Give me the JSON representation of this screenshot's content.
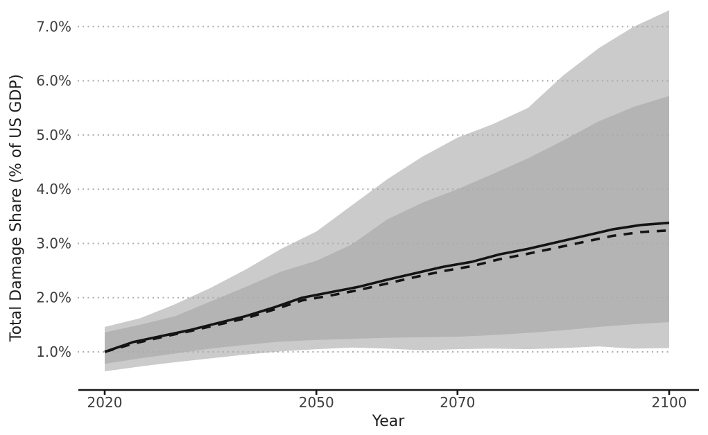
{
  "chart_data": {
    "type": "area",
    "title": "",
    "xlabel": "Year",
    "ylabel": "Total Damage Share (% of US GDP)",
    "xlim": [
      2016.3,
      2104.2
    ],
    "ylim": [
      0.55,
      7.39
    ],
    "grid": "horizontal-dotted",
    "legend_position": "none",
    "x_ticks": [
      {
        "value": 2020,
        "label": "2020"
      },
      {
        "value": 2050,
        "label": "2050"
      },
      {
        "value": 2070,
        "label": "2070"
      },
      {
        "value": 2100,
        "label": "2100"
      }
    ],
    "y_ticks": [
      {
        "value": 1.0,
        "label": "1.0%"
      },
      {
        "value": 2.0,
        "label": "2.0%"
      },
      {
        "value": 3.0,
        "label": "3.0%"
      },
      {
        "value": 4.0,
        "label": "4.0%"
      },
      {
        "value": 5.0,
        "label": "5.0%"
      },
      {
        "value": 6.0,
        "label": "6.0%"
      },
      {
        "value": 7.0,
        "label": "7.0%"
      }
    ],
    "band_x": [
      2020,
      2025,
      2030,
      2035,
      2040,
      2045,
      2050,
      2055,
      2060,
      2065,
      2070,
      2075,
      2080,
      2085,
      2090,
      2095,
      2100
    ],
    "bands": [
      {
        "name": "outer-uncertainty-band",
        "color": "#cbcbcb",
        "hi": [
          1.46,
          1.62,
          1.88,
          2.18,
          2.52,
          2.9,
          3.22,
          3.7,
          4.18,
          4.6,
          4.95,
          5.2,
          5.5,
          6.1,
          6.6,
          7.0,
          7.3
        ],
        "lo": [
          0.64,
          0.73,
          0.81,
          0.88,
          0.95,
          1.01,
          1.05,
          1.08,
          1.06,
          1.03,
          1.05,
          1.06,
          1.05,
          1.07,
          1.1,
          1.06,
          1.07
        ]
      },
      {
        "name": "inner-uncertainty-band",
        "color": "#b4b4b4",
        "hi": [
          1.36,
          1.5,
          1.66,
          1.93,
          2.2,
          2.48,
          2.68,
          2.98,
          3.44,
          3.75,
          4.0,
          4.28,
          4.57,
          4.9,
          5.25,
          5.52,
          5.72
        ],
        "lo": [
          0.78,
          0.88,
          0.97,
          1.06,
          1.13,
          1.19,
          1.22,
          1.24,
          1.26,
          1.27,
          1.28,
          1.31,
          1.35,
          1.4,
          1.46,
          1.51,
          1.55
        ]
      }
    ],
    "line_x": [
      2020,
      2024,
      2028,
      2032,
      2036,
      2040,
      2044,
      2048,
      2052,
      2056,
      2060,
      2064,
      2068,
      2072,
      2076,
      2080,
      2084,
      2088,
      2092,
      2096,
      2100
    ],
    "series": [
      {
        "name": "central-estimate-solid",
        "style": "solid",
        "color": "#141414",
        "values": [
          1.0,
          1.18,
          1.29,
          1.4,
          1.53,
          1.66,
          1.82,
          2.0,
          2.1,
          2.2,
          2.33,
          2.45,
          2.57,
          2.66,
          2.8,
          2.9,
          3.02,
          3.14,
          3.26,
          3.34,
          3.38
        ]
      },
      {
        "name": "alternative-estimate-dashed",
        "style": "dashed",
        "color": "#141414",
        "values": [
          1.0,
          1.15,
          1.27,
          1.38,
          1.5,
          1.62,
          1.78,
          1.95,
          2.04,
          2.14,
          2.26,
          2.38,
          2.49,
          2.58,
          2.71,
          2.81,
          2.92,
          3.03,
          3.14,
          3.21,
          3.24
        ]
      }
    ],
    "colors": {
      "background": "#ffffff",
      "gridline": "#ababab",
      "axis_line": "#141414",
      "tick_label": "#3d3d3d",
      "axis_title": "#1f1f1f"
    }
  }
}
